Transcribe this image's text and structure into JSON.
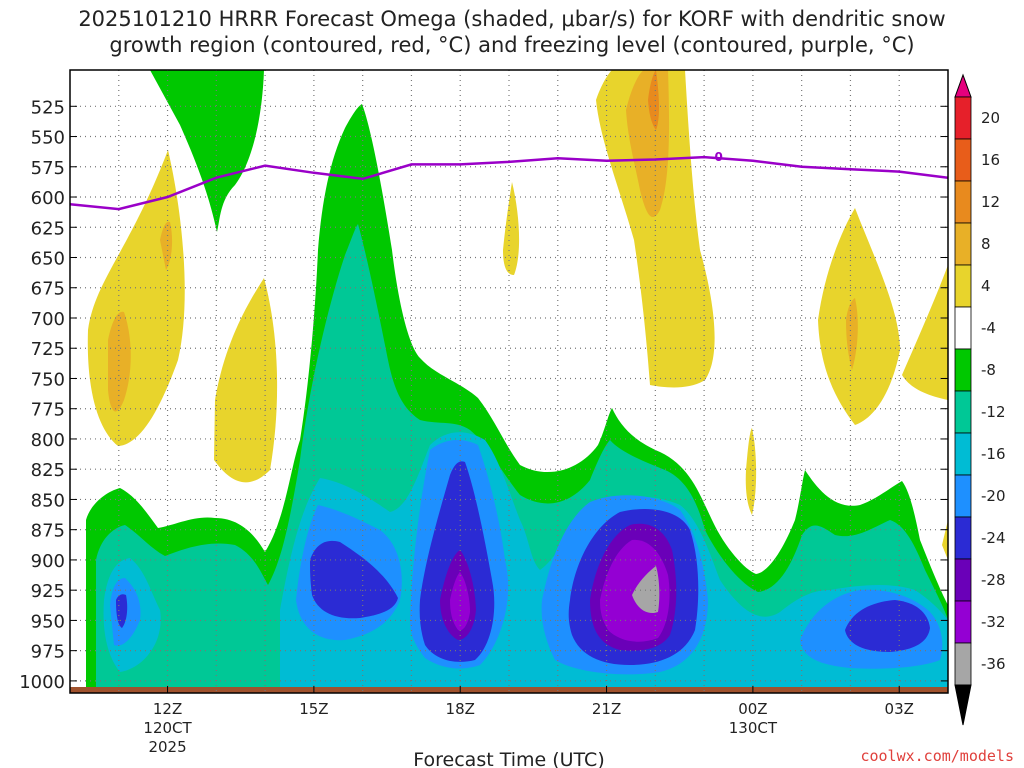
{
  "chart_data": {
    "type": "heatmap",
    "title": "2025101210 HRRR Forecast Omega (shaded, μbar/s) for KORF with dendritic snow\ngrowth region (contoured, red, °C) and freezing level (contoured, purple, °C)",
    "xlabel": "Forecast Time (UTC)",
    "ylabel": "",
    "x_range_hours": [
      10,
      28
    ],
    "y_range_hpa": [
      1010,
      495
    ],
    "y_ticks": [
      525,
      550,
      575,
      600,
      625,
      650,
      675,
      700,
      725,
      750,
      775,
      800,
      825,
      850,
      875,
      900,
      925,
      950,
      975,
      1000
    ],
    "x_ticks": [
      {
        "hour": 12,
        "label": "12Z",
        "sub": [
          "120CT",
          "2025"
        ]
      },
      {
        "hour": 15,
        "label": "15Z",
        "sub": []
      },
      {
        "hour": 18,
        "label": "18Z",
        "sub": []
      },
      {
        "hour": 21,
        "label": "21Z",
        "sub": []
      },
      {
        "hour": 24,
        "label": "00Z",
        "sub": [
          "130CT"
        ]
      },
      {
        "hour": 27,
        "label": "03Z",
        "sub": []
      }
    ],
    "colorbar": {
      "levels": [
        -36,
        -32,
        -28,
        -24,
        -20,
        -16,
        -12,
        -8,
        -4,
        4,
        8,
        12,
        16,
        20
      ],
      "colors": [
        "#000000",
        "#a6a6a6",
        "#9400d3",
        "#6a00b8",
        "#2b2bd4",
        "#1e90ff",
        "#00bcd4",
        "#00c896",
        "#00c800",
        "#ffffff",
        "#e8d42c",
        "#e8b027",
        "#e88a1e",
        "#e85d1a",
        "#e6202a",
        "#e6007e"
      ]
    },
    "freezing_level": {
      "label": "0",
      "hours": [
        10,
        11,
        12,
        13,
        14,
        15,
        16,
        17,
        18,
        19,
        20,
        21,
        22,
        23,
        24,
        25,
        26,
        27,
        28
      ],
      "pressure_hpa": [
        606,
        610,
        600,
        584,
        574,
        580,
        585,
        573,
        573,
        571,
        568,
        570,
        569,
        567,
        570,
        575,
        577,
        579,
        584
      ]
    }
  },
  "footer": "coolwx.com/models"
}
